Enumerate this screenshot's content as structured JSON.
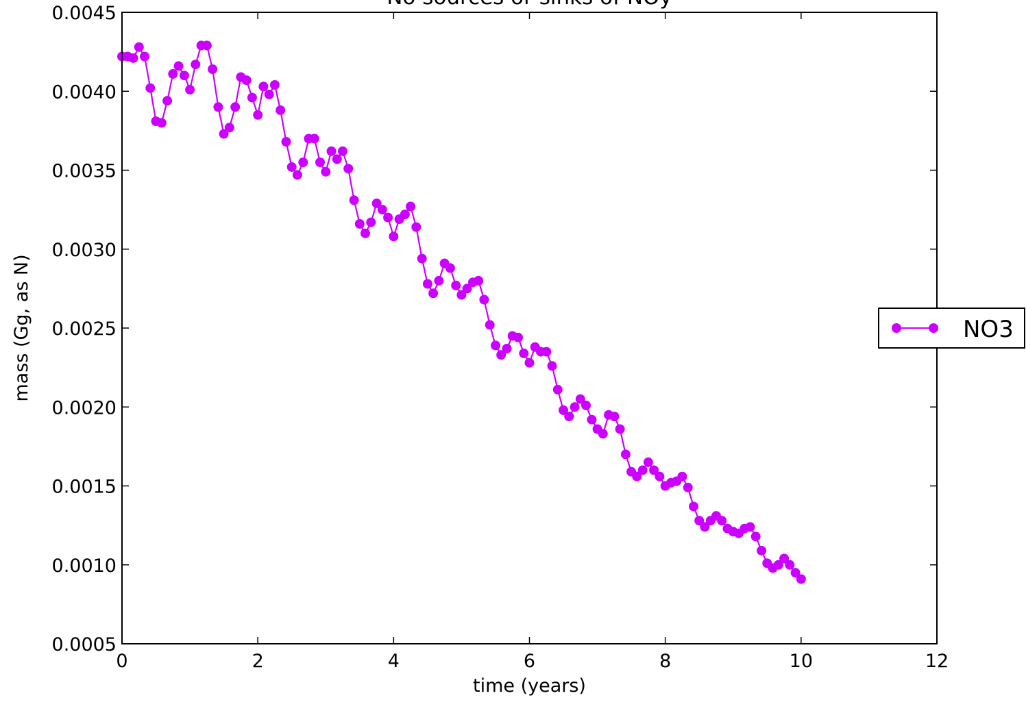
{
  "chart_data": {
    "type": "line",
    "title": "No sources or sinks of NOy",
    "xlabel": "time (years)",
    "ylabel": "mass (Gg, as N)",
    "xlim": [
      0,
      12
    ],
    "ylim": [
      0.0005,
      0.0045
    ],
    "xticks": [
      0,
      2,
      4,
      6,
      8,
      10,
      12
    ],
    "xtick_labels": [
      "0",
      "2",
      "4",
      "6",
      "8",
      "10",
      "12"
    ],
    "yticks": [
      0.0005,
      0.001,
      0.0015,
      0.002,
      0.0025,
      0.003,
      0.0035,
      0.004,
      0.0045
    ],
    "ytick_labels": [
      "0.0005",
      "0.0010",
      "0.0015",
      "0.0020",
      "0.0025",
      "0.0030",
      "0.0035",
      "0.0040",
      "0.0045"
    ],
    "grid": false,
    "legend_position": "right",
    "series": [
      {
        "name": "NO3",
        "color": "#cc00ff",
        "marker": "circle",
        "x": [
          0.0,
          0.083,
          0.167,
          0.25,
          0.333,
          0.417,
          0.5,
          0.583,
          0.667,
          0.75,
          0.833,
          0.917,
          1.0,
          1.083,
          1.167,
          1.25,
          1.333,
          1.417,
          1.5,
          1.583,
          1.667,
          1.75,
          1.833,
          1.917,
          2.0,
          2.083,
          2.167,
          2.25,
          2.333,
          2.417,
          2.5,
          2.583,
          2.667,
          2.75,
          2.833,
          2.917,
          3.0,
          3.083,
          3.167,
          3.25,
          3.333,
          3.417,
          3.5,
          3.583,
          3.667,
          3.75,
          3.833,
          3.917,
          4.0,
          4.083,
          4.167,
          4.25,
          4.333,
          4.417,
          4.5,
          4.583,
          4.667,
          4.75,
          4.833,
          4.917,
          5.0,
          5.083,
          5.167,
          5.25,
          5.333,
          5.417,
          5.5,
          5.583,
          5.667,
          5.75,
          5.833,
          5.917,
          6.0,
          6.083,
          6.167,
          6.25,
          6.333,
          6.417,
          6.5,
          6.583,
          6.667,
          6.75,
          6.833,
          6.917,
          7.0,
          7.083,
          7.167,
          7.25,
          7.333,
          7.417,
          7.5,
          7.583,
          7.667,
          7.75,
          7.833,
          7.917,
          8.0,
          8.083,
          8.167,
          8.25,
          8.333,
          8.417,
          8.5,
          8.583,
          8.667,
          8.75,
          8.833,
          8.917,
          9.0,
          9.083,
          9.167,
          9.25,
          9.333,
          9.417,
          9.5,
          9.583,
          9.667,
          9.75,
          9.833,
          9.917,
          10.0
        ],
        "y": [
          0.00422,
          0.00422,
          0.00421,
          0.00428,
          0.00422,
          0.00402,
          0.00381,
          0.0038,
          0.00394,
          0.00411,
          0.00416,
          0.0041,
          0.00401,
          0.00417,
          0.00429,
          0.00429,
          0.00414,
          0.0039,
          0.00373,
          0.00377,
          0.0039,
          0.00409,
          0.00407,
          0.00396,
          0.00385,
          0.00403,
          0.00398,
          0.00404,
          0.00388,
          0.00368,
          0.00352,
          0.00347,
          0.00355,
          0.0037,
          0.0037,
          0.00355,
          0.00349,
          0.00362,
          0.00357,
          0.00362,
          0.00351,
          0.00331,
          0.00316,
          0.0031,
          0.00317,
          0.00329,
          0.00325,
          0.0032,
          0.00308,
          0.00319,
          0.00322,
          0.00327,
          0.00314,
          0.00294,
          0.00278,
          0.00272,
          0.0028,
          0.00291,
          0.00288,
          0.00277,
          0.00271,
          0.00275,
          0.00279,
          0.0028,
          0.00268,
          0.00252,
          0.00239,
          0.00233,
          0.00237,
          0.00245,
          0.00244,
          0.00234,
          0.00228,
          0.00238,
          0.00235,
          0.00235,
          0.00226,
          0.00211,
          0.00198,
          0.00194,
          0.002,
          0.00205,
          0.00201,
          0.00192,
          0.00186,
          0.00183,
          0.00195,
          0.00194,
          0.00186,
          0.0017,
          0.00159,
          0.00156,
          0.0016,
          0.00165,
          0.0016,
          0.00156,
          0.0015,
          0.00152,
          0.00153,
          0.00156,
          0.00149,
          0.00137,
          0.00128,
          0.00124,
          0.00128,
          0.00131,
          0.00128,
          0.00123,
          0.00121,
          0.0012,
          0.00123,
          0.00124,
          0.00118,
          0.00109,
          0.00101,
          0.00098,
          0.001,
          0.00104,
          0.001,
          0.00095,
          0.00091
        ]
      }
    ]
  }
}
